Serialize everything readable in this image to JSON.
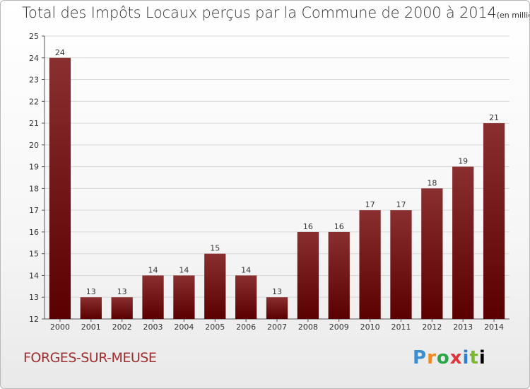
{
  "title": "Total des Impôts Locaux perçus par la Commune de 2000 à 2014",
  "unit": "(en milliers d'€)",
  "commune": "FORGES-SUR-MEUSE",
  "logo": [
    "P",
    "r",
    "o",
    "x",
    "i",
    "t",
    "i"
  ],
  "colors": {
    "bar_top": "#8a2f30",
    "bar_bottom": "#5a0000",
    "grid": "#d8d8d8"
  },
  "chart_data": {
    "type": "bar",
    "title": "Total des Impôts Locaux perçus par la Commune de 2000 à 2014",
    "ylabel": "en milliers d'€",
    "categories": [
      "2000",
      "2001",
      "2002",
      "2003",
      "2004",
      "2005",
      "2006",
      "2007",
      "2008",
      "2009",
      "2010",
      "2011",
      "2012",
      "2013",
      "2014"
    ],
    "values": [
      24,
      13,
      13,
      14,
      14,
      15,
      14,
      13,
      16,
      16,
      17,
      17,
      18,
      19,
      21
    ],
    "ylim": [
      12,
      25
    ],
    "yticks": [
      12,
      13,
      14,
      15,
      16,
      17,
      18,
      19,
      20,
      21,
      22,
      23,
      24,
      25
    ],
    "grid": true
  }
}
